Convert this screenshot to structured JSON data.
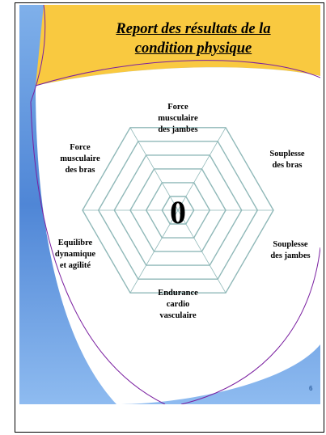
{
  "slide": {
    "title_line1": "Report des résultats de la",
    "title_line2": "condition physique",
    "page_number": "6"
  },
  "radar": {
    "center_value": "0",
    "axes": [
      {
        "line1": "Force",
        "line2": "musculaire",
        "line3": "des jambes"
      },
      {
        "line1": "Souplesse",
        "line2": "des bras",
        "line3": ""
      },
      {
        "line1": "Souplesse",
        "line2": "des jambes",
        "line3": ""
      },
      {
        "line1": "Endurance",
        "line2": "cardio",
        "line3": "vasculaire"
      },
      {
        "line1": "Equilibre",
        "line2": "dynamique",
        "line3": "et agilité"
      },
      {
        "line1": "Force",
        "line2": "musculaire",
        "line3": "des bras"
      }
    ]
  },
  "colors": {
    "top_band": "#f9c940",
    "side_band": "#5b8fd9",
    "grid": "#8fb8b8",
    "swoosh": "#7a1fa0",
    "page_number": "#3465a4"
  }
}
